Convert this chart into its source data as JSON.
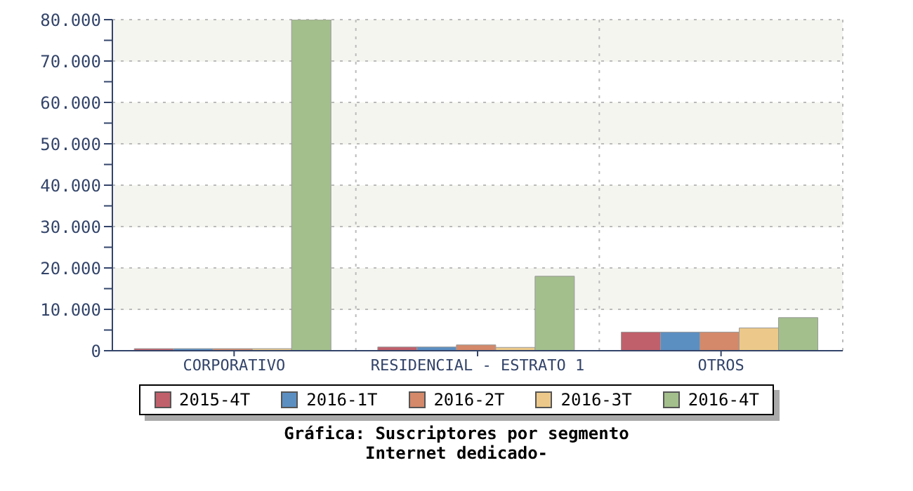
{
  "chart_data": {
    "type": "bar",
    "title": "Gráfica: Suscriptores por segmento",
    "subtitle": "Internet dedicado-",
    "categories": [
      "CORPORATIVO",
      "RESIDENCIAL - ESTRATO 1",
      "OTROS"
    ],
    "series": [
      {
        "name": "2015-4T",
        "color": "#c0606a",
        "values": [
          500,
          900,
          4500
        ]
      },
      {
        "name": "2016-1T",
        "color": "#5b8fc2",
        "values": [
          500,
          900,
          4500
        ]
      },
      {
        "name": "2016-2T",
        "color": "#d4896a",
        "values": [
          500,
          1400,
          4500
        ]
      },
      {
        "name": "2016-3T",
        "color": "#ecc98a",
        "values": [
          500,
          800,
          5500
        ]
      },
      {
        "name": "2016-4T",
        "color": "#a3bf8c",
        "values": [
          80000,
          18000,
          8000
        ]
      }
    ],
    "ylim": [
      0,
      80000
    ],
    "yticks": [
      {
        "value": 0,
        "label": "0"
      },
      {
        "value": 5000,
        "label": null
      },
      {
        "value": 10000,
        "label": "10.000"
      },
      {
        "value": 15000,
        "label": null
      },
      {
        "value": 20000,
        "label": "20.000"
      },
      {
        "value": 25000,
        "label": null
      },
      {
        "value": 30000,
        "label": "30.000"
      },
      {
        "value": 35000,
        "label": null
      },
      {
        "value": 40000,
        "label": "40.000"
      },
      {
        "value": 45000,
        "label": null
      },
      {
        "value": 50000,
        "label": "50.000"
      },
      {
        "value": 55000,
        "label": null
      },
      {
        "value": 60000,
        "label": "60.000"
      },
      {
        "value": 65000,
        "label": null
      },
      {
        "value": 70000,
        "label": "70.000"
      },
      {
        "value": 75000,
        "label": null
      },
      {
        "value": 80000,
        "label": "80.000"
      }
    ],
    "grid": true,
    "legend": "bottom"
  }
}
